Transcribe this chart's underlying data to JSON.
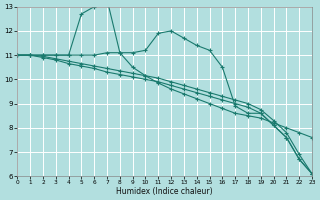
{
  "xlabel": "Humidex (Indice chaleur)",
  "background_color": "#b2dfdf",
  "grid_color": "#ffffff",
  "line_color": "#1a7a6e",
  "xlim": [
    0,
    23
  ],
  "ylim": [
    6,
    13
  ],
  "xtick_vals": [
    0,
    1,
    2,
    3,
    4,
    5,
    6,
    7,
    8,
    9,
    10,
    11,
    12,
    13,
    14,
    15,
    16,
    17,
    18,
    19,
    20,
    21,
    22,
    23
  ],
  "ytick_vals": [
    6,
    7,
    8,
    9,
    10,
    11,
    12,
    13
  ],
  "lines": [
    {
      "x": [
        0,
        1,
        2,
        3,
        4,
        5,
        6,
        7,
        8,
        9,
        10,
        11,
        12,
        13,
        14,
        15,
        16,
        17,
        18,
        19,
        20,
        21,
        22,
        23
      ],
      "y": [
        11.0,
        11.0,
        11.0,
        11.0,
        11.0,
        12.7,
        13.0,
        13.3,
        11.1,
        10.5,
        10.15,
        9.85,
        9.6,
        9.4,
        9.2,
        9.0,
        8.8,
        8.6,
        8.5,
        8.4,
        8.2,
        8.0,
        7.8,
        7.6
      ]
    },
    {
      "x": [
        0,
        1,
        2,
        3,
        4,
        5,
        6,
        7,
        8,
        9,
        10,
        11,
        12,
        13,
        14,
        15,
        16,
        17,
        18,
        19,
        20,
        21,
        22,
        23
      ],
      "y": [
        11.0,
        11.0,
        11.0,
        11.0,
        11.0,
        11.0,
        11.0,
        11.1,
        11.1,
        11.1,
        11.2,
        11.9,
        12.0,
        11.7,
        11.4,
        11.2,
        10.5,
        8.9,
        8.6,
        8.6,
        8.1,
        7.6,
        6.7,
        6.1
      ]
    },
    {
      "x": [
        0,
        1,
        2,
        3,
        4,
        5,
        6,
        7,
        8,
        9,
        10,
        11,
        12,
        13,
        14,
        15,
        16,
        17,
        18,
        19,
        20,
        21,
        22,
        23
      ],
      "y": [
        11.0,
        11.0,
        10.9,
        10.8,
        10.65,
        10.55,
        10.45,
        10.3,
        10.2,
        10.1,
        10.0,
        9.9,
        9.75,
        9.6,
        9.45,
        9.3,
        9.15,
        9.0,
        8.85,
        8.6,
        8.1,
        7.6,
        6.7,
        6.1
      ]
    },
    {
      "x": [
        0,
        1,
        2,
        3,
        4,
        5,
        6,
        7,
        8,
        9,
        10,
        11,
        12,
        13,
        14,
        15,
        16,
        17,
        18,
        19,
        20,
        21,
        22,
        23
      ],
      "y": [
        11.0,
        11.0,
        10.95,
        10.85,
        10.75,
        10.65,
        10.55,
        10.45,
        10.35,
        10.25,
        10.15,
        10.05,
        9.9,
        9.75,
        9.6,
        9.45,
        9.3,
        9.15,
        9.0,
        8.75,
        8.3,
        7.8,
        6.9,
        6.1
      ]
    }
  ]
}
